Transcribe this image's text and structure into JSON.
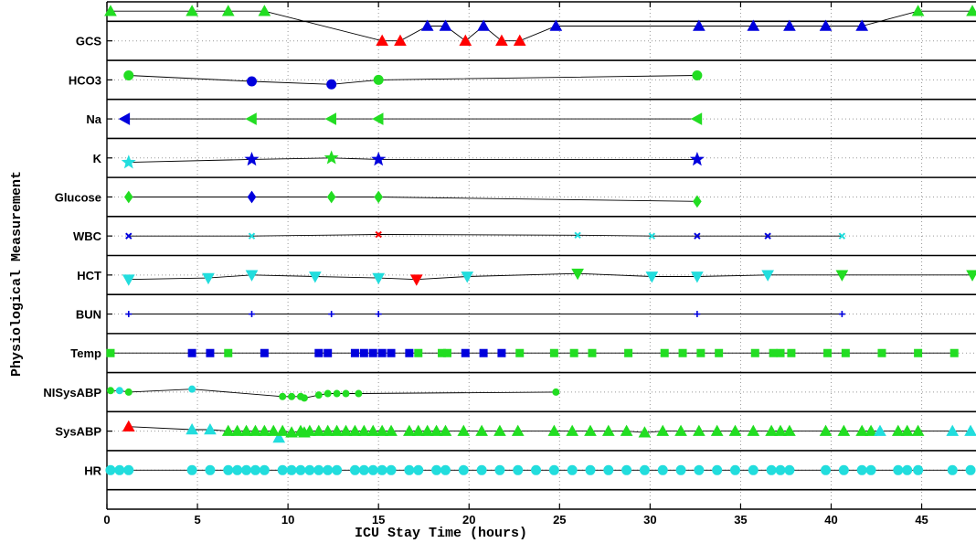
{
  "chart_data": {
    "type": "scatter",
    "xlabel": "ICU Stay Time (hours)",
    "ylabel": "Physiological Measurement",
    "xlim": [
      0,
      48
    ],
    "x_ticks": [
      0,
      5,
      10,
      15,
      20,
      25,
      30,
      35,
      40,
      45
    ],
    "grid": true,
    "colors": {
      "green": "#22dd22",
      "blue": "#0000dd",
      "red": "#ff0000",
      "cyan": "#22dddd"
    },
    "rows": [
      {
        "label": "GCS",
        "marker": "triangle-up",
        "points": [
          [
            0.2,
            "green",
            2
          ],
          [
            4.7,
            "green",
            2
          ],
          [
            6.7,
            "green",
            2
          ],
          [
            8.7,
            "green",
            2
          ],
          [
            15.2,
            "red",
            0
          ],
          [
            16.2,
            "red",
            0
          ],
          [
            17.7,
            "blue",
            1
          ],
          [
            18.7,
            "blue",
            1
          ],
          [
            19.8,
            "red",
            0
          ],
          [
            20.8,
            "blue",
            1
          ],
          [
            21.8,
            "red",
            0
          ],
          [
            22.8,
            "red",
            0
          ],
          [
            24.8,
            "blue",
            1
          ],
          [
            32.7,
            "blue",
            1
          ],
          [
            35.7,
            "blue",
            1
          ],
          [
            37.7,
            "blue",
            1
          ],
          [
            39.7,
            "blue",
            1
          ],
          [
            41.7,
            "blue",
            1
          ],
          [
            44.8,
            "green",
            2
          ],
          [
            47.8,
            "green",
            2
          ]
        ]
      },
      {
        "label": "HCO3",
        "marker": "circle",
        "points": [
          [
            1.2,
            "green",
            0.3
          ],
          [
            8.0,
            "blue",
            -0.1
          ],
          [
            12.4,
            "blue",
            -0.3
          ],
          [
            15.0,
            "green",
            0.0
          ],
          [
            32.6,
            "green",
            0.3
          ]
        ]
      },
      {
        "label": "Na",
        "marker": "triangle-left",
        "points": [
          [
            1.0,
            "blue",
            0
          ],
          [
            8.0,
            "green",
            0
          ],
          [
            12.4,
            "green",
            0
          ],
          [
            15.0,
            "green",
            0
          ],
          [
            32.6,
            "green",
            0
          ]
        ]
      },
      {
        "label": "K",
        "marker": "star",
        "points": [
          [
            1.2,
            "cyan",
            -0.3
          ],
          [
            8.0,
            "blue",
            -0.1
          ],
          [
            12.4,
            "green",
            0.0
          ],
          [
            15.0,
            "blue",
            -0.1
          ],
          [
            32.6,
            "blue",
            -0.1
          ]
        ]
      },
      {
        "label": "Glucose",
        "marker": "diamond",
        "points": [
          [
            1.2,
            "green",
            0
          ],
          [
            8.0,
            "blue",
            0
          ],
          [
            12.4,
            "green",
            0
          ],
          [
            15.0,
            "green",
            0
          ],
          [
            32.6,
            "green",
            -0.3
          ]
        ]
      },
      {
        "label": "WBC",
        "marker": "x",
        "points": [
          [
            1.2,
            "blue",
            0
          ],
          [
            8.0,
            "cyan",
            0
          ],
          [
            15.0,
            "red",
            0.1
          ],
          [
            26.0,
            "cyan",
            0.05
          ],
          [
            30.1,
            "cyan",
            0
          ],
          [
            32.6,
            "blue",
            0
          ],
          [
            36.5,
            "blue",
            0
          ],
          [
            40.6,
            "cyan",
            0
          ]
        ]
      },
      {
        "label": "HCT",
        "marker": "triangle-down",
        "points": [
          [
            1.2,
            "cyan",
            -0.3
          ],
          [
            5.6,
            "cyan",
            -0.2
          ],
          [
            8.0,
            "cyan",
            0
          ],
          [
            11.5,
            "cyan",
            -0.1
          ],
          [
            15.0,
            "cyan",
            -0.2
          ],
          [
            17.1,
            "red",
            -0.3
          ],
          [
            19.9,
            "cyan",
            -0.1
          ],
          [
            26.0,
            "green",
            0.1
          ],
          [
            30.1,
            "cyan",
            -0.1
          ],
          [
            32.6,
            "cyan",
            -0.1
          ],
          [
            36.5,
            "cyan",
            0
          ],
          [
            40.6,
            "green",
            0
          ],
          [
            47.8,
            "green",
            0
          ]
        ]
      },
      {
        "label": "BUN",
        "marker": "plus",
        "points": [
          [
            1.2,
            "blue",
            0
          ],
          [
            8.0,
            "blue",
            0
          ],
          [
            12.4,
            "blue",
            0
          ],
          [
            15.0,
            "blue",
            0
          ],
          [
            32.6,
            "blue",
            0
          ],
          [
            40.6,
            "blue",
            0
          ]
        ]
      },
      {
        "label": "Temp",
        "marker": "square",
        "points": [
          [
            0.2,
            "green",
            0
          ],
          [
            4.7,
            "blue",
            0
          ],
          [
            5.7,
            "blue",
            0
          ],
          [
            6.7,
            "green",
            0
          ],
          [
            8.7,
            "blue",
            0
          ],
          [
            11.7,
            "blue",
            0
          ],
          [
            12.2,
            "blue",
            0
          ],
          [
            13.7,
            "blue",
            0
          ],
          [
            14.2,
            "blue",
            0
          ],
          [
            14.7,
            "blue",
            0
          ],
          [
            15.2,
            "blue",
            0
          ],
          [
            15.7,
            "blue",
            0
          ],
          [
            16.7,
            "blue",
            0
          ],
          [
            17.2,
            "green",
            0
          ],
          [
            18.5,
            "green",
            0
          ],
          [
            18.8,
            "green",
            0
          ],
          [
            19.8,
            "blue",
            0
          ],
          [
            20.8,
            "blue",
            0
          ],
          [
            21.8,
            "blue",
            0
          ],
          [
            22.8,
            "green",
            0
          ],
          [
            24.7,
            "green",
            0
          ],
          [
            25.8,
            "green",
            0
          ],
          [
            26.8,
            "green",
            0
          ],
          [
            28.8,
            "green",
            0
          ],
          [
            30.8,
            "green",
            0
          ],
          [
            31.8,
            "green",
            0
          ],
          [
            32.8,
            "green",
            0
          ],
          [
            33.8,
            "green",
            0
          ],
          [
            35.8,
            "green",
            0
          ],
          [
            36.8,
            "green",
            0
          ],
          [
            37.2,
            "green",
            0
          ],
          [
            37.8,
            "green",
            0
          ],
          [
            39.8,
            "green",
            0
          ],
          [
            40.8,
            "green",
            0
          ],
          [
            42.8,
            "green",
            0
          ],
          [
            44.8,
            "green",
            0
          ],
          [
            46.8,
            "green",
            0
          ]
        ]
      },
      {
        "label": "NISysABP",
        "marker": "circle-small",
        "points": [
          [
            0.2,
            "green",
            0.1
          ],
          [
            0.7,
            "cyan",
            0.1
          ],
          [
            1.2,
            "green",
            0
          ],
          [
            4.7,
            "cyan",
            0.2
          ],
          [
            9.7,
            "green",
            -0.3
          ],
          [
            10.2,
            "green",
            -0.3
          ],
          [
            10.7,
            "green",
            -0.3
          ],
          [
            10.9,
            "green",
            -0.4
          ],
          [
            11.7,
            "green",
            -0.2
          ],
          [
            12.2,
            "green",
            -0.1
          ],
          [
            12.7,
            "green",
            -0.1
          ],
          [
            13.2,
            "green",
            -0.1
          ],
          [
            13.9,
            "green",
            -0.1
          ],
          [
            24.8,
            "green",
            0
          ]
        ]
      },
      {
        "label": "SysABP",
        "marker": "triangle-up",
        "points": [
          [
            1.2,
            "red",
            0.3
          ],
          [
            4.7,
            "cyan",
            0.1
          ],
          [
            5.7,
            "cyan",
            0.1
          ],
          [
            6.7,
            "green",
            0
          ],
          [
            7.2,
            "green",
            0
          ],
          [
            7.7,
            "green",
            0
          ],
          [
            8.2,
            "green",
            0
          ],
          [
            8.7,
            "green",
            0
          ],
          [
            9.2,
            "green",
            0
          ],
          [
            9.5,
            "cyan",
            -0.45
          ],
          [
            9.7,
            "green",
            0
          ],
          [
            10.2,
            "green",
            -0.1
          ],
          [
            10.7,
            "green",
            0
          ],
          [
            10.9,
            "green",
            -0.1
          ],
          [
            11.2,
            "green",
            0
          ],
          [
            11.7,
            "green",
            0
          ],
          [
            12.2,
            "green",
            0
          ],
          [
            12.7,
            "green",
            0
          ],
          [
            13.2,
            "green",
            0
          ],
          [
            13.7,
            "green",
            0
          ],
          [
            14.2,
            "green",
            0
          ],
          [
            14.7,
            "green",
            0
          ],
          [
            15.2,
            "green",
            0
          ],
          [
            15.7,
            "green",
            0
          ],
          [
            16.7,
            "green",
            0
          ],
          [
            17.2,
            "green",
            0
          ],
          [
            17.7,
            "green",
            0
          ],
          [
            18.2,
            "green",
            0
          ],
          [
            18.7,
            "green",
            0
          ],
          [
            19.7,
            "green",
            0
          ],
          [
            20.7,
            "green",
            0
          ],
          [
            21.7,
            "green",
            0
          ],
          [
            22.7,
            "green",
            0
          ],
          [
            24.7,
            "green",
            0
          ],
          [
            25.7,
            "green",
            0
          ],
          [
            26.7,
            "green",
            0
          ],
          [
            27.7,
            "green",
            0
          ],
          [
            28.7,
            "green",
            0
          ],
          [
            29.7,
            "green",
            -0.1
          ],
          [
            30.7,
            "green",
            0
          ],
          [
            31.7,
            "green",
            0
          ],
          [
            32.7,
            "green",
            0
          ],
          [
            33.7,
            "green",
            0
          ],
          [
            34.7,
            "green",
            0
          ],
          [
            35.7,
            "green",
            0
          ],
          [
            36.7,
            "green",
            0
          ],
          [
            37.2,
            "green",
            0
          ],
          [
            37.7,
            "green",
            0
          ],
          [
            39.7,
            "green",
            0
          ],
          [
            40.7,
            "green",
            0
          ],
          [
            41.7,
            "green",
            0
          ],
          [
            42.2,
            "green",
            0
          ],
          [
            42.7,
            "cyan",
            0
          ],
          [
            43.7,
            "green",
            0
          ],
          [
            44.2,
            "green",
            0
          ],
          [
            44.8,
            "green",
            0
          ],
          [
            46.7,
            "cyan",
            0
          ],
          [
            47.7,
            "cyan",
            0
          ]
        ]
      },
      {
        "label": "HR",
        "marker": "circle",
        "points": [
          [
            0.2,
            "cyan",
            0
          ],
          [
            0.7,
            "cyan",
            0
          ],
          [
            1.2,
            "cyan",
            0
          ],
          [
            4.7,
            "cyan",
            0
          ],
          [
            5.7,
            "cyan",
            0
          ],
          [
            6.7,
            "cyan",
            0
          ],
          [
            7.2,
            "cyan",
            0
          ],
          [
            7.7,
            "cyan",
            0
          ],
          [
            8.2,
            "cyan",
            0
          ],
          [
            8.7,
            "cyan",
            0
          ],
          [
            9.7,
            "cyan",
            0
          ],
          [
            10.2,
            "cyan",
            0
          ],
          [
            10.7,
            "cyan",
            0
          ],
          [
            11.2,
            "cyan",
            0
          ],
          [
            11.7,
            "cyan",
            0
          ],
          [
            12.2,
            "cyan",
            0
          ],
          [
            12.7,
            "cyan",
            0
          ],
          [
            13.7,
            "cyan",
            0
          ],
          [
            14.2,
            "cyan",
            0
          ],
          [
            14.7,
            "cyan",
            0
          ],
          [
            15.2,
            "cyan",
            0
          ],
          [
            15.7,
            "cyan",
            0
          ],
          [
            16.7,
            "cyan",
            0
          ],
          [
            17.2,
            "cyan",
            0
          ],
          [
            18.2,
            "cyan",
            0
          ],
          [
            18.7,
            "cyan",
            0
          ],
          [
            19.7,
            "cyan",
            0
          ],
          [
            20.7,
            "cyan",
            0
          ],
          [
            21.7,
            "cyan",
            0
          ],
          [
            22.7,
            "cyan",
            0
          ],
          [
            23.7,
            "cyan",
            0
          ],
          [
            24.7,
            "cyan",
            0
          ],
          [
            25.7,
            "cyan",
            0
          ],
          [
            26.7,
            "cyan",
            0
          ],
          [
            27.7,
            "cyan",
            0
          ],
          [
            28.7,
            "cyan",
            0
          ],
          [
            29.7,
            "cyan",
            0
          ],
          [
            30.7,
            "cyan",
            0
          ],
          [
            31.7,
            "cyan",
            0
          ],
          [
            32.7,
            "cyan",
            0
          ],
          [
            33.7,
            "cyan",
            0
          ],
          [
            34.7,
            "cyan",
            0
          ],
          [
            35.7,
            "cyan",
            0
          ],
          [
            36.7,
            "cyan",
            0
          ],
          [
            37.2,
            "cyan",
            0
          ],
          [
            37.7,
            "cyan",
            0
          ],
          [
            39.7,
            "cyan",
            0
          ],
          [
            40.7,
            "cyan",
            0
          ],
          [
            41.7,
            "cyan",
            0
          ],
          [
            42.2,
            "cyan",
            0
          ],
          [
            43.7,
            "cyan",
            0
          ],
          [
            44.2,
            "cyan",
            0
          ],
          [
            44.8,
            "cyan",
            0
          ],
          [
            46.7,
            "cyan",
            0
          ],
          [
            47.7,
            "cyan",
            0
          ]
        ]
      }
    ]
  }
}
